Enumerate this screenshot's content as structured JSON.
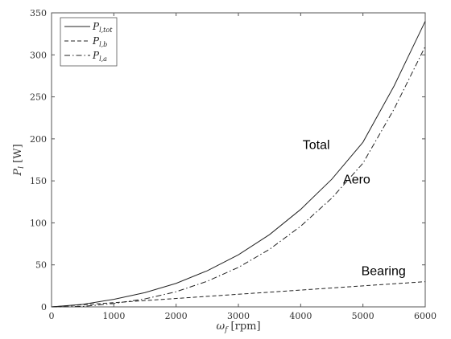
{
  "chart_data": {
    "type": "line",
    "xlabel": {
      "main": "ω",
      "sub": "f",
      "unit": " [rpm]"
    },
    "ylabel": {
      "main": "P",
      "sub": "l",
      "unit": " [W]"
    },
    "xlim": [
      0,
      6000
    ],
    "ylim": [
      0,
      350
    ],
    "xticks": [
      0,
      1000,
      2000,
      3000,
      4000,
      5000,
      6000
    ],
    "yticks": [
      0,
      50,
      100,
      150,
      200,
      250,
      300,
      350
    ],
    "grid": false,
    "legend_position": "top-left",
    "x": [
      0,
      500,
      1000,
      1500,
      2000,
      2500,
      3000,
      3500,
      4000,
      4500,
      5000,
      5500,
      6000
    ],
    "series": [
      {
        "name": {
          "main": "P",
          "sub": "l,tot"
        },
        "style": "solid",
        "values": [
          0,
          3,
          9,
          17,
          28,
          43,
          62,
          86,
          116,
          152,
          196,
          263,
          340
        ]
      },
      {
        "name": {
          "main": "P",
          "sub": "l,b"
        },
        "style": "dashed",
        "values": [
          0,
          2.5,
          5,
          7.5,
          10,
          12.5,
          15,
          17.5,
          20,
          22.5,
          25,
          27.5,
          30
        ]
      },
      {
        "name": {
          "main": "P",
          "sub": "l,a"
        },
        "style": "dashdot",
        "values": [
          0,
          0.5,
          4,
          9.5,
          18,
          30.5,
          47,
          68.5,
          96,
          129.5,
          171,
          235.5,
          310
        ]
      }
    ],
    "annotations": [
      {
        "text": "Total",
        "x": 4250,
        "y": 188
      },
      {
        "text": "Aero",
        "x": 4900,
        "y": 147
      },
      {
        "text": "Bearing",
        "x": 5330,
        "y": 38
      }
    ]
  }
}
